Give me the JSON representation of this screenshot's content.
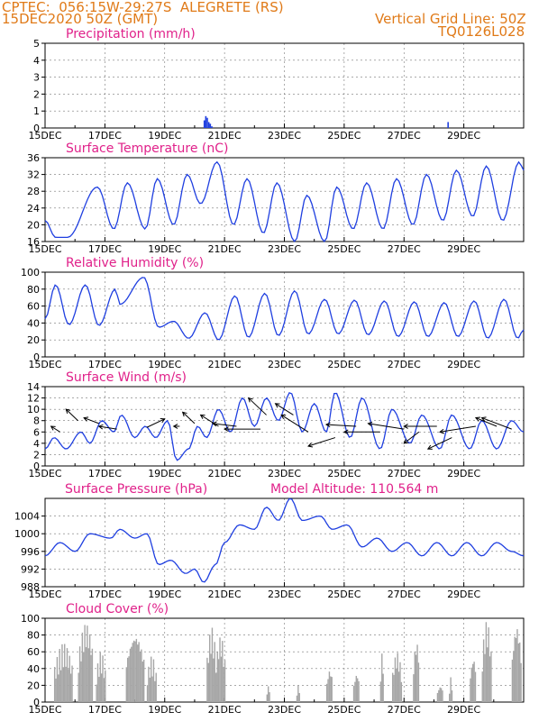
{
  "header": {
    "line1": "CPTEC:  056:15W-29:27S  ALEGRETE (RS)",
    "line2": "15DEC2020 50Z (GMT)",
    "right1": "Vertical Grid Line: 50Z",
    "right2": "TQ0126L028"
  },
  "colors": {
    "header": "#e07a18",
    "title": "#e0218a",
    "line": "#1f3fe0",
    "cloud": "#a6a6a6"
  },
  "x_labels": [
    "15DEC",
    "17DEC",
    "19DEC",
    "21DEC",
    "23DEC",
    "25DEC",
    "27DEC",
    "29DEC"
  ],
  "chart_data": [
    {
      "type": "bar",
      "title": "Precipitation (mm/h)",
      "ylim": [
        0,
        5
      ],
      "yticks": [
        "0",
        "1",
        "2",
        "3",
        "4",
        "5"
      ],
      "x_days_start": "2020-12-15",
      "bars": [
        [
          5.3,
          0.45
        ],
        [
          5.35,
          0.7
        ],
        [
          5.4,
          0.6
        ],
        [
          5.45,
          0.35
        ],
        [
          5.5,
          0.25
        ],
        [
          5.55,
          0.1
        ],
        [
          13.45,
          0.35
        ]
      ]
    },
    {
      "type": "line",
      "title": "Surface Temperature (nC)",
      "ylim": [
        16,
        36
      ],
      "yticks": [
        "16",
        "20",
        "24",
        "28",
        "32",
        "36"
      ],
      "peaks": [
        {
          "day": 0,
          "v": 21
        },
        {
          "day": 0.35,
          "v": 17
        },
        {
          "day": 0.75,
          "v": 17
        },
        {
          "day": 1.75,
          "v": 29
        },
        {
          "day": 2.3,
          "v": 19
        },
        {
          "day": 2.75,
          "v": 30
        },
        {
          "day": 3.35,
          "v": 19
        },
        {
          "day": 3.75,
          "v": 31
        },
        {
          "day": 4.3,
          "v": 20
        },
        {
          "day": 4.75,
          "v": 32
        },
        {
          "day": 5.2,
          "v": 25
        },
        {
          "day": 5.75,
          "v": 35
        },
        {
          "day": 6.3,
          "v": 20
        },
        {
          "day": 6.75,
          "v": 31
        },
        {
          "day": 7.3,
          "v": 18
        },
        {
          "day": 7.75,
          "v": 30
        },
        {
          "day": 8.35,
          "v": 16
        },
        {
          "day": 8.75,
          "v": 27
        },
        {
          "day": 9.35,
          "v": 16
        },
        {
          "day": 9.75,
          "v": 29
        },
        {
          "day": 10.3,
          "v": 19
        },
        {
          "day": 10.75,
          "v": 30
        },
        {
          "day": 11.3,
          "v": 19
        },
        {
          "day": 11.75,
          "v": 31
        },
        {
          "day": 12.3,
          "v": 20
        },
        {
          "day": 12.75,
          "v": 32
        },
        {
          "day": 13.3,
          "v": 21
        },
        {
          "day": 13.75,
          "v": 33
        },
        {
          "day": 14.3,
          "v": 22
        },
        {
          "day": 14.75,
          "v": 34
        },
        {
          "day": 15.3,
          "v": 21
        },
        {
          "day": 15.85,
          "v": 35
        },
        {
          "day": 16,
          "v": 33
        }
      ]
    },
    {
      "type": "line",
      "title": "Relative Humidity (%)",
      "ylim": [
        0,
        100
      ],
      "yticks": [
        "0",
        "20",
        "40",
        "60",
        "80",
        "100"
      ],
      "peaks": [
        {
          "day": 0,
          "v": 45
        },
        {
          "day": 0.35,
          "v": 85
        },
        {
          "day": 0.8,
          "v": 38
        },
        {
          "day": 1.35,
          "v": 85
        },
        {
          "day": 1.8,
          "v": 37
        },
        {
          "day": 2.35,
          "v": 80
        },
        {
          "day": 2.5,
          "v": 62
        },
        {
          "day": 3.3,
          "v": 94
        },
        {
          "day": 3.8,
          "v": 35
        },
        {
          "day": 4.3,
          "v": 42
        },
        {
          "day": 4.8,
          "v": 22
        },
        {
          "day": 5.35,
          "v": 52
        },
        {
          "day": 5.8,
          "v": 20
        },
        {
          "day": 6.35,
          "v": 72
        },
        {
          "day": 6.8,
          "v": 23
        },
        {
          "day": 7.35,
          "v": 75
        },
        {
          "day": 7.8,
          "v": 25
        },
        {
          "day": 8.35,
          "v": 78
        },
        {
          "day": 8.8,
          "v": 27
        },
        {
          "day": 9.35,
          "v": 68
        },
        {
          "day": 9.8,
          "v": 27
        },
        {
          "day": 10.35,
          "v": 67
        },
        {
          "day": 10.8,
          "v": 26
        },
        {
          "day": 11.35,
          "v": 66
        },
        {
          "day": 11.8,
          "v": 24
        },
        {
          "day": 12.35,
          "v": 65
        },
        {
          "day": 12.8,
          "v": 24
        },
        {
          "day": 13.35,
          "v": 64
        },
        {
          "day": 13.8,
          "v": 24
        },
        {
          "day": 14.35,
          "v": 66
        },
        {
          "day": 14.8,
          "v": 22
        },
        {
          "day": 15.35,
          "v": 68
        },
        {
          "day": 15.8,
          "v": 22
        },
        {
          "day": 16,
          "v": 32
        }
      ]
    },
    {
      "type": "line",
      "title": "Surface Wind (m/s)",
      "ylim": [
        0,
        14
      ],
      "yticks": [
        "0",
        "2",
        "4",
        "6",
        "8",
        "10",
        "12",
        "14"
      ],
      "peaks": [
        {
          "day": 0,
          "v": 3
        },
        {
          "day": 0.3,
          "v": 5
        },
        {
          "day": 0.7,
          "v": 3
        },
        {
          "day": 1.2,
          "v": 6
        },
        {
          "day": 1.5,
          "v": 4
        },
        {
          "day": 1.9,
          "v": 8
        },
        {
          "day": 2.3,
          "v": 6
        },
        {
          "day": 2.55,
          "v": 9
        },
        {
          "day": 3,
          "v": 5
        },
        {
          "day": 3.35,
          "v": 7
        },
        {
          "day": 3.7,
          "v": 5
        },
        {
          "day": 4.1,
          "v": 8
        },
        {
          "day": 4.4,
          "v": 1
        },
        {
          "day": 4.8,
          "v": 3
        },
        {
          "day": 5.1,
          "v": 7
        },
        {
          "day": 5.4,
          "v": 5
        },
        {
          "day": 5.8,
          "v": 10
        },
        {
          "day": 6.2,
          "v": 6
        },
        {
          "day": 6.6,
          "v": 12
        },
        {
          "day": 7,
          "v": 7
        },
        {
          "day": 7.4,
          "v": 12
        },
        {
          "day": 7.8,
          "v": 8
        },
        {
          "day": 8.2,
          "v": 13
        },
        {
          "day": 8.6,
          "v": 6
        },
        {
          "day": 9,
          "v": 11
        },
        {
          "day": 9.4,
          "v": 6
        },
        {
          "day": 9.7,
          "v": 13
        },
        {
          "day": 10.2,
          "v": 5
        },
        {
          "day": 10.6,
          "v": 12
        },
        {
          "day": 11.2,
          "v": 3
        },
        {
          "day": 11.6,
          "v": 10
        },
        {
          "day": 12.2,
          "v": 4
        },
        {
          "day": 12.6,
          "v": 9
        },
        {
          "day": 13.2,
          "v": 3
        },
        {
          "day": 13.6,
          "v": 9
        },
        {
          "day": 14.2,
          "v": 3
        },
        {
          "day": 14.6,
          "v": 8
        },
        {
          "day": 15.1,
          "v": 3
        },
        {
          "day": 15.6,
          "v": 8
        },
        {
          "day": 16,
          "v": 6
        }
      ],
      "arrows": [
        {
          "day": 0.5,
          "v": 6,
          "dx": -0.3,
          "dy": 1
        },
        {
          "day": 1.1,
          "v": 8,
          "dx": -0.4,
          "dy": 2
        },
        {
          "day": 1.8,
          "v": 7.5,
          "dx": -0.5,
          "dy": 1
        },
        {
          "day": 2.4,
          "v": 6.5,
          "dx": -0.6,
          "dy": 0.5
        },
        {
          "day": 3.4,
          "v": 6.8,
          "dx": 0.6,
          "dy": 1.5
        },
        {
          "day": 4.5,
          "v": 7,
          "dx": -0.2,
          "dy": 0
        },
        {
          "day": 5,
          "v": 7.5,
          "dx": -0.4,
          "dy": 2
        },
        {
          "day": 5.8,
          "v": 7,
          "dx": -0.6,
          "dy": 2
        },
        {
          "day": 6.4,
          "v": 7,
          "dx": -0.8,
          "dy": 0.5
        },
        {
          "day": 7.2,
          "v": 6.5,
          "dx": -1.2,
          "dy": 0
        },
        {
          "day": 7.4,
          "v": 9,
          "dx": -0.6,
          "dy": 3
        },
        {
          "day": 8.3,
          "v": 9,
          "dx": -0.6,
          "dy": 2
        },
        {
          "day": 8.8,
          "v": 6,
          "dx": -0.9,
          "dy": 3
        },
        {
          "day": 9.7,
          "v": 5,
          "dx": -0.9,
          "dy": -1.5
        },
        {
          "day": 10.4,
          "v": 7,
          "dx": -1,
          "dy": 0.3
        },
        {
          "day": 11.2,
          "v": 6,
          "dx": -1.2,
          "dy": 0
        },
        {
          "day": 12,
          "v": 6.5,
          "dx": -1.2,
          "dy": 1
        },
        {
          "day": 12.5,
          "v": 6,
          "dx": -0.5,
          "dy": -2
        },
        {
          "day": 13.1,
          "v": 7,
          "dx": -1.1,
          "dy": 0
        },
        {
          "day": 13.6,
          "v": 5,
          "dx": -0.8,
          "dy": -2
        },
        {
          "day": 14.4,
          "v": 7,
          "dx": -1.2,
          "dy": -1
        },
        {
          "day": 15.1,
          "v": 7,
          "dx": -0.7,
          "dy": 1.5
        },
        {
          "day": 15.6,
          "v": 6.5,
          "dx": -1,
          "dy": 2
        }
      ]
    },
    {
      "type": "line",
      "title": "Surface Pressure (hPa)",
      "annotation": "Model Altitude: 110.564 m",
      "ylim": [
        988,
        1008
      ],
      "yticks": [
        "988",
        "992",
        "996",
        "1000",
        "1004"
      ],
      "peaks": [
        {
          "day": 0,
          "v": 995
        },
        {
          "day": 0.5,
          "v": 998
        },
        {
          "day": 1,
          "v": 996
        },
        {
          "day": 1.5,
          "v": 1000
        },
        {
          "day": 2.2,
          "v": 999
        },
        {
          "day": 2.5,
          "v": 1001
        },
        {
          "day": 3,
          "v": 999
        },
        {
          "day": 3.4,
          "v": 1000
        },
        {
          "day": 3.8,
          "v": 993
        },
        {
          "day": 4.2,
          "v": 994
        },
        {
          "day": 4.7,
          "v": 991
        },
        {
          "day": 5,
          "v": 992
        },
        {
          "day": 5.3,
          "v": 989
        },
        {
          "day": 5.7,
          "v": 993
        },
        {
          "day": 6,
          "v": 998
        },
        {
          "day": 6.5,
          "v": 1002
        },
        {
          "day": 7,
          "v": 1001
        },
        {
          "day": 7.4,
          "v": 1006
        },
        {
          "day": 7.8,
          "v": 1003
        },
        {
          "day": 8.2,
          "v": 1008
        },
        {
          "day": 8.6,
          "v": 1003
        },
        {
          "day": 9.2,
          "v": 1004
        },
        {
          "day": 9.6,
          "v": 1001
        },
        {
          "day": 10.1,
          "v": 1002
        },
        {
          "day": 10.6,
          "v": 997
        },
        {
          "day": 11.1,
          "v": 999
        },
        {
          "day": 11.6,
          "v": 996
        },
        {
          "day": 12.1,
          "v": 998
        },
        {
          "day": 12.6,
          "v": 995
        },
        {
          "day": 13.1,
          "v": 998
        },
        {
          "day": 13.6,
          "v": 995
        },
        {
          "day": 14.1,
          "v": 998
        },
        {
          "day": 14.6,
          "v": 995
        },
        {
          "day": 15.1,
          "v": 998
        },
        {
          "day": 15.6,
          "v": 996
        },
        {
          "day": 16,
          "v": 995
        }
      ]
    },
    {
      "type": "bar",
      "title": "Cloud Cover (%)",
      "ylim": [
        0,
        100
      ],
      "yticks": [
        "0",
        "20",
        "40",
        "60",
        "80",
        "100"
      ],
      "clusters": [
        [
          0.3,
          0.9,
          70
        ],
        [
          1.1,
          1.6,
          95
        ],
        [
          1.7,
          2.0,
          60
        ],
        [
          2.7,
          3.3,
          85
        ],
        [
          3.4,
          3.7,
          55
        ],
        [
          5.4,
          5.7,
          90
        ],
        [
          5.7,
          6.0,
          80
        ],
        [
          7.4,
          7.5,
          20
        ],
        [
          8.4,
          8.5,
          20
        ],
        [
          9.4,
          9.6,
          40
        ],
        [
          10.3,
          10.5,
          35
        ],
        [
          11.2,
          11.3,
          60
        ],
        [
          11.6,
          11.9,
          60
        ],
        [
          12.3,
          12.5,
          75
        ],
        [
          13.1,
          13.3,
          20
        ],
        [
          13.5,
          13.6,
          30
        ],
        [
          14.2,
          14.4,
          55
        ],
        [
          14.6,
          14.9,
          98
        ],
        [
          15.6,
          15.9,
          95
        ]
      ]
    }
  ]
}
